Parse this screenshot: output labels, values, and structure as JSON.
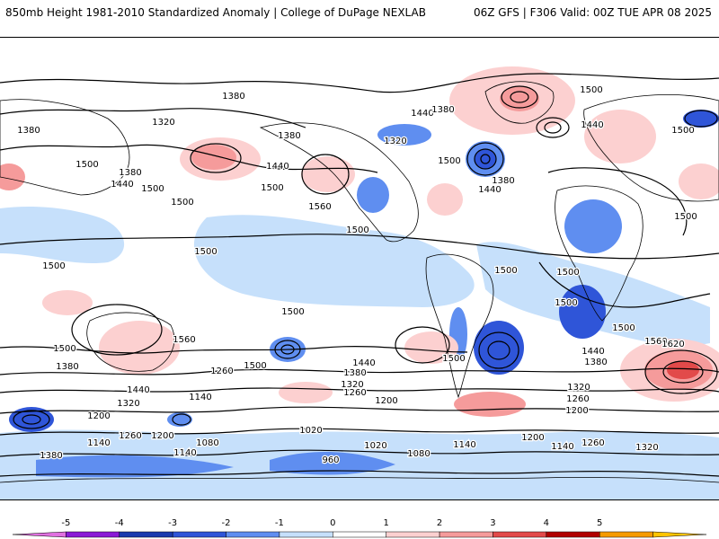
{
  "header": {
    "left_title": "850mb Height 1981-2010 Standardized Anomaly | College of DuPage NEXLAB",
    "right_title": "06Z GFS | F306 Valid: 00Z TUE APR 08 2025"
  },
  "map": {
    "contour_labels": [
      "1380",
      "1320",
      "1380",
      "1500",
      "1380",
      "1440",
      "1500",
      "1380",
      "1440",
      "1500",
      "1560",
      "1500",
      "1440",
      "1380",
      "1320",
      "1500",
      "1380",
      "1440",
      "1500",
      "1440",
      "1500",
      "1500",
      "1500",
      "1500",
      "1560",
      "1500",
      "1380",
      "1440",
      "1320",
      "1200",
      "1260",
      "1140",
      "1260",
      "1200",
      "1140",
      "1380",
      "1080",
      "1140",
      "1500",
      "1440",
      "1380",
      "1320",
      "1260",
      "1200",
      "1020",
      "960",
      "1020",
      "1080",
      "1140",
      "1200",
      "1500",
      "1440",
      "1380",
      "1500",
      "1500",
      "1320",
      "1260",
      "1200",
      "1140",
      "1260",
      "1320",
      "1560",
      "1620",
      "1500",
      "1500",
      "1500",
      "1500"
    ]
  },
  "colorbar": {
    "ticks": [
      "-5",
      "-4",
      "-3",
      "-2",
      "-1",
      "0",
      "1",
      "2",
      "3",
      "4",
      "5"
    ],
    "colors": [
      "#e070e0",
      "#8a1ad6",
      "#1a3aae",
      "#2f55d8",
      "#5f8ef0",
      "#c6e0fb",
      "#ffffff",
      "#fcd0d0",
      "#f59b9b",
      "#e24a4a",
      "#b00000",
      "#f59a00",
      "#ffc400"
    ]
  }
}
